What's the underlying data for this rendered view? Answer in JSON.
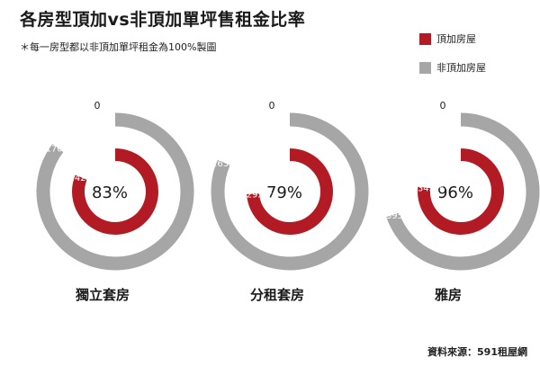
{
  "colors": {
    "top_floor": "#b31b24",
    "non_top_floor": "#a6a6a6",
    "text": "#1a1a1a"
  },
  "chart_data": {
    "type": "radial-bar",
    "title": "各房型頂加vs非頂加單坪售租金比率",
    "subtitle": "＊每一房型都以非頂加單坪租金為100%製圖",
    "legend": [
      "頂加房屋",
      "非頂加房屋"
    ],
    "legend_position": "top-right",
    "start_label": "0",
    "source": "資料來源：591租屋網",
    "categories": [
      "獨立套房",
      "分租套房",
      "雅房"
    ],
    "series": [
      {
        "name": "頂加房屋",
        "values": [
          1423,
          1295,
          1343
        ],
        "labels": [
          "1423元",
          "1295元",
          "1343元"
        ]
      },
      {
        "name": "非頂加房屋",
        "values": [
          1707,
          1632,
          1395
        ],
        "labels": [
          "1707元",
          "1632元",
          "1395元"
        ]
      }
    ],
    "ratio_labels": [
      "83%",
      "79%",
      "96%"
    ]
  }
}
